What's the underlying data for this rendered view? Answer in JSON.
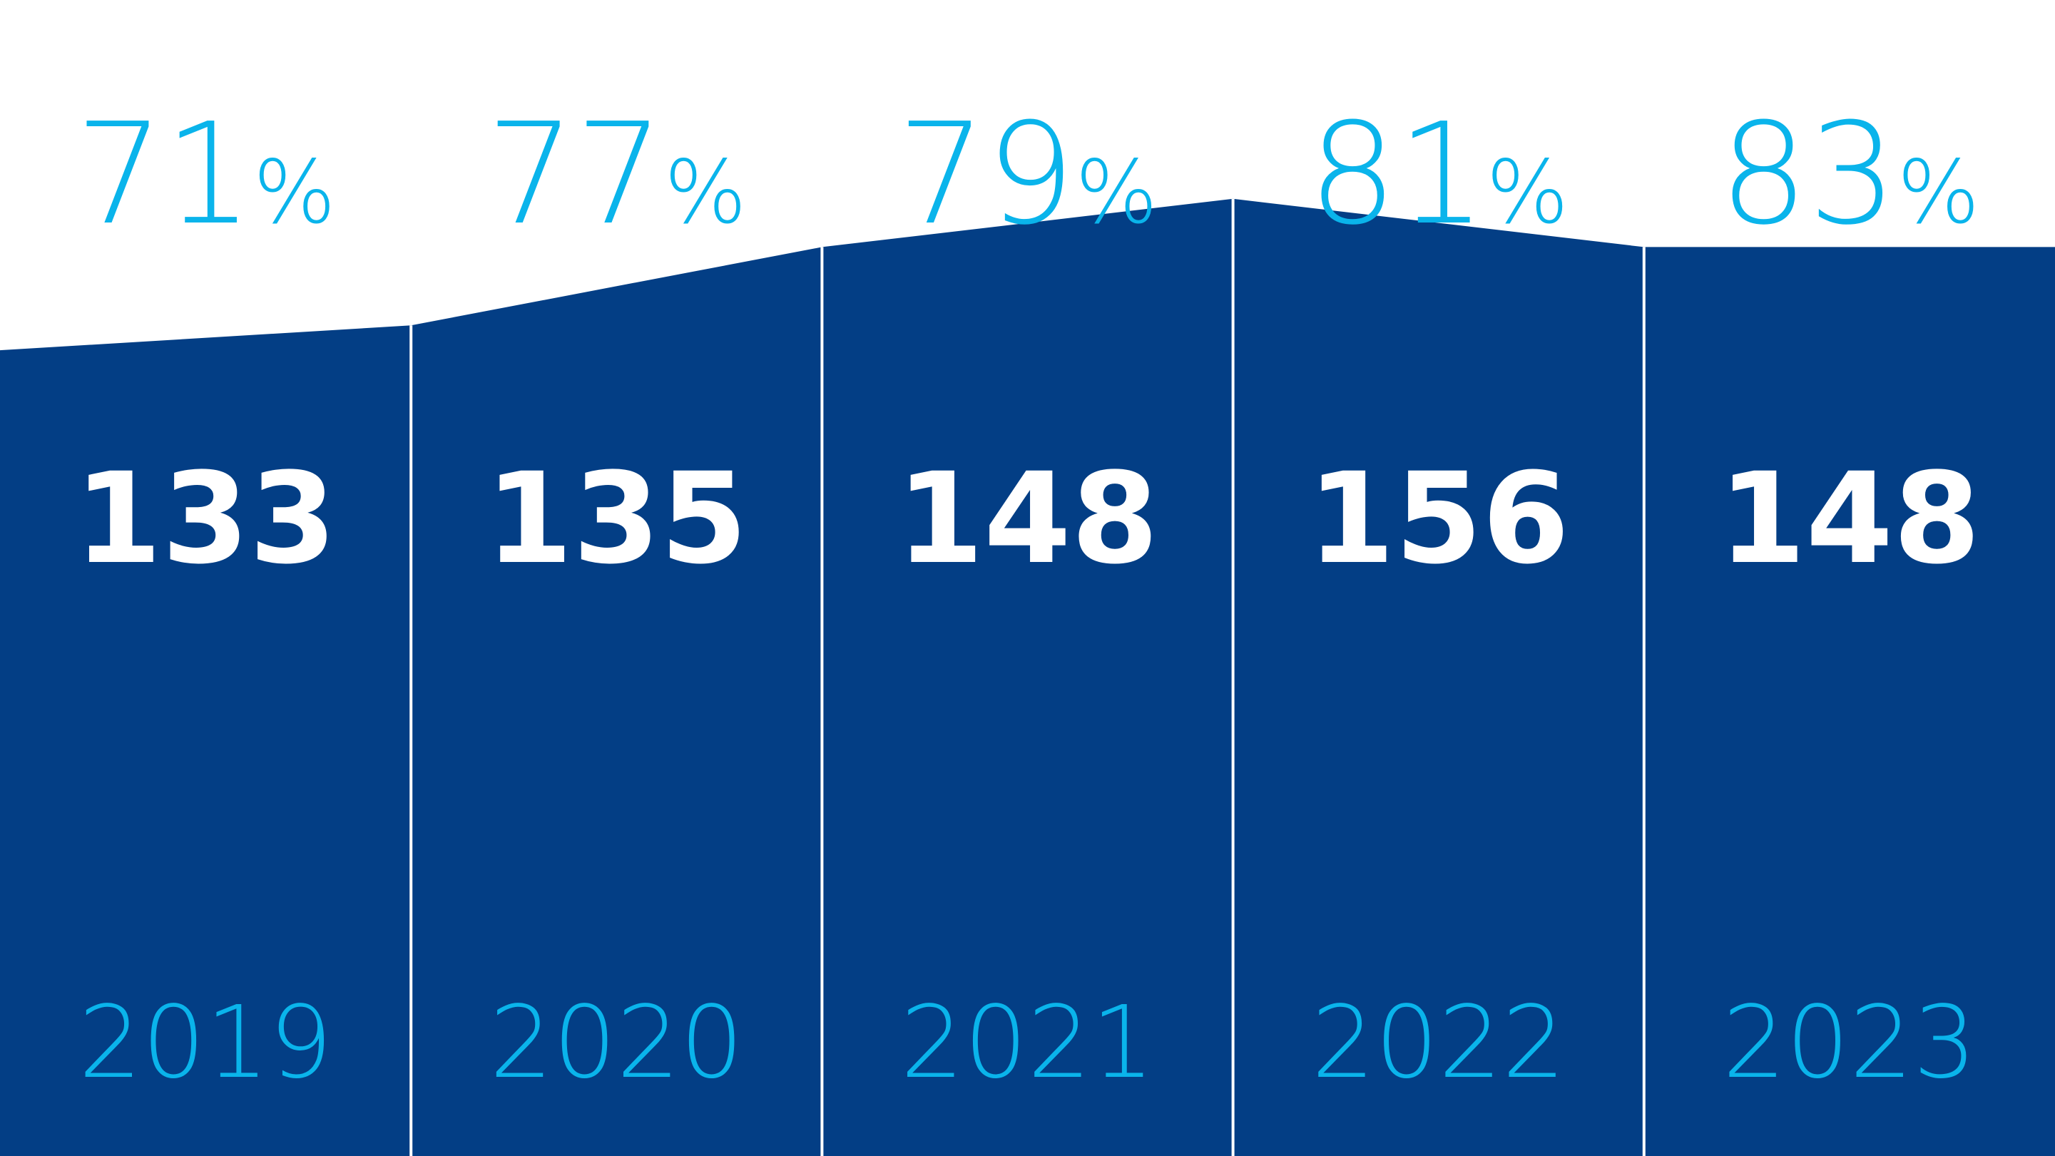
{
  "colors": {
    "bar_fill": "#033e85",
    "divider": "#ffffff",
    "percent_text": "#0ab4eb",
    "value_text": "#ffffff",
    "year_text": "#0ab4eb",
    "background": "#ffffff"
  },
  "chart_data": {
    "type": "area",
    "categories": [
      "2019",
      "2020",
      "2021",
      "2022",
      "2023"
    ],
    "series": [
      {
        "values": [
          133,
          135,
          148,
          156,
          148
        ]
      }
    ],
    "percent_labels": [
      {
        "number": "71",
        "sign": "%"
      },
      {
        "number": "77",
        "sign": "%"
      },
      {
        "number": "79",
        "sign": "%"
      },
      {
        "number": "81",
        "sign": "%"
      },
      {
        "number": "83",
        "sign": "%"
      }
    ],
    "percent_values": [
      71,
      77,
      79,
      81,
      83
    ],
    "value_labels": [
      "133",
      "135",
      "148",
      "156",
      "148"
    ],
    "year_labels": [
      "2019",
      "2020",
      "2021",
      "2022",
      "2023"
    ],
    "title": "",
    "xlabel": "",
    "ylabel": "",
    "grid": false,
    "legend": "none"
  }
}
